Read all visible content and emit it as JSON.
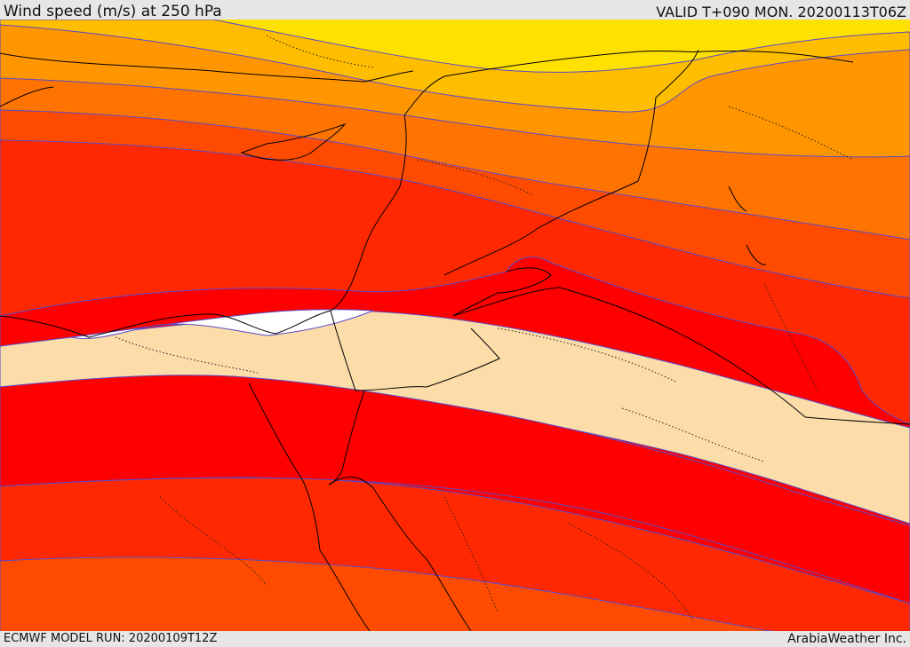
{
  "header": {
    "title": "Wind speed (m/s) at 250 hPa",
    "valid_time": "VALID T+090 MON. 20200113T06Z"
  },
  "footer": {
    "model_run": "ECMWF MODEL RUN: 20200109T12Z",
    "credit": "ArabiaWeather Inc."
  },
  "map": {
    "variable": "wind-speed",
    "level_hpa": 250,
    "colors": {
      "band_yellow": "#ffe100",
      "band_gold": "#ffbd00",
      "band_orange_light": "#ff9600",
      "band_orange": "#ff7300",
      "band_orange_red": "#ff4b00",
      "band_red_orange": "#ff2800",
      "band_red": "#ff0000",
      "band_peach": "#fcdca8",
      "band_white": "#ffffff",
      "contour_line": "#5a4ac8",
      "coastline": "#000000"
    }
  }
}
